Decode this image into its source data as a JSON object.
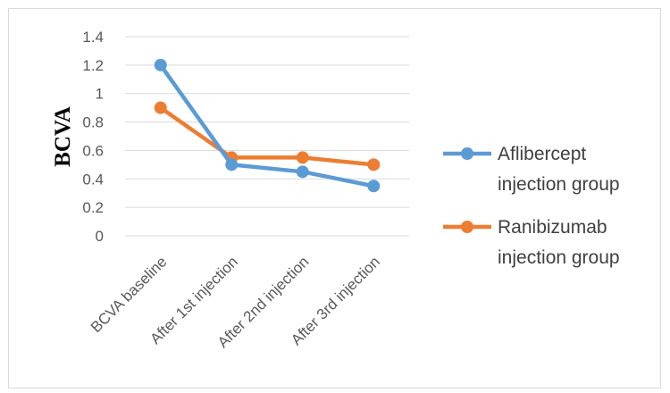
{
  "chart_data": {
    "type": "line",
    "title": "",
    "xlabel": "",
    "ylabel": "BCVA",
    "categories": [
      "BCVA  baseline",
      "After 1st  injection",
      "After 2nd injection",
      "After 3rd  injection"
    ],
    "series": [
      {
        "name": "Aflibercept injection group",
        "color": "#5b9bd5",
        "values": [
          1.2,
          0.5,
          0.45,
          0.35
        ]
      },
      {
        "name": "Ranibizumab injection group",
        "color": "#ed7d31",
        "values": [
          0.9,
          0.55,
          0.55,
          0.5
        ]
      }
    ],
    "ylim": [
      0,
      1.4
    ],
    "yticks": [
      "0",
      "0.2",
      "0.4",
      "0.6",
      "0.8",
      "1",
      "1.2",
      "1.4"
    ],
    "grid": true,
    "legend_position": "right"
  }
}
